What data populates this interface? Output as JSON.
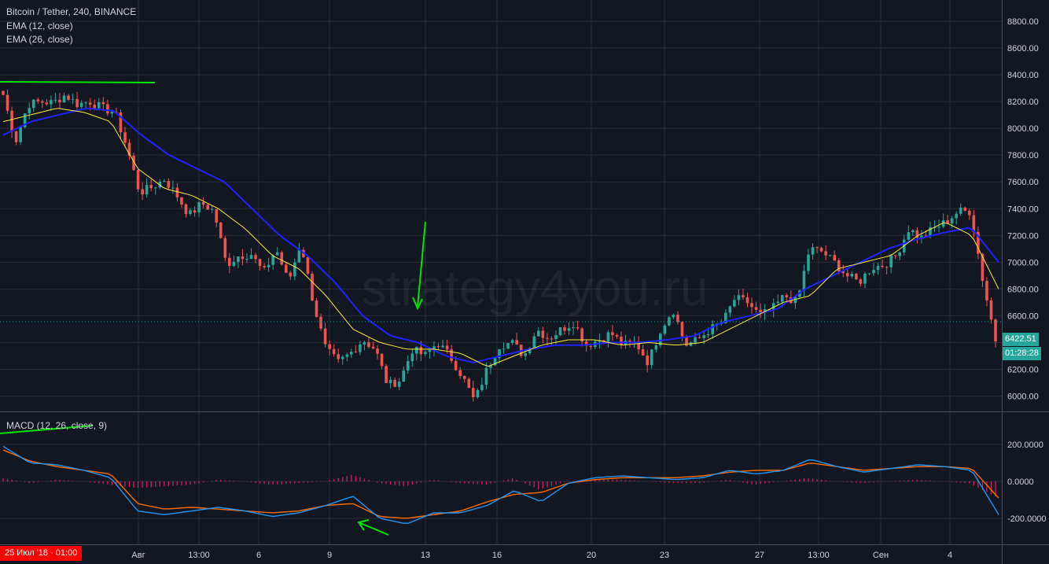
{
  "header": {
    "symbol_title": "Bitcoin / Tether, 240, BINANCE",
    "ema_fast_label": "EMA (12, close)",
    "ema_slow_label": "EMA (26, close)"
  },
  "macd_legend": "MACD (12, 26, close, 9)",
  "watermark": "strategy4you.ru",
  "colors": {
    "background": "#131722",
    "grid": "#2a2e39",
    "candle_up": "#26a69a",
    "candle_down": "#ef5350",
    "ema_fast": "#ffeb3b",
    "ema_slow": "#1e22ff",
    "macd_line": "#2196f3",
    "signal_line": "#ff6d00",
    "histogram": "#e91e63",
    "annotation": "#00e600",
    "price_tag": "#26a69a",
    "date_tag": "#ff0000"
  },
  "price_tag": {
    "price": "6422.51",
    "countdown": "01:28:28"
  },
  "date_tag": "25 Июл '18 · 01:00",
  "chart_data": [
    {
      "type": "candlestick",
      "name": "price",
      "y_ticks": [
        "8800.00",
        "8600.00",
        "8400.00",
        "8200.00",
        "8000.00",
        "7800.00",
        "7600.00",
        "7400.00",
        "7200.00",
        "7000.00",
        "6800.00",
        "6600.00",
        "6400.00",
        "6200.00",
        "6000.00"
      ],
      "ylim": [
        5900,
        8950
      ],
      "x_tick_labels": [
        "Авг",
        "13:00",
        "6",
        "9",
        "13",
        "16",
        "20",
        "23",
        "27",
        "13:00",
        "Сен",
        "4"
      ],
      "last_price": 6422.51,
      "price_level_line": 6555,
      "grid": true,
      "anchor_closes": [
        8250,
        7900,
        8180,
        8200,
        8190,
        8250,
        8180,
        8200,
        8150,
        8120,
        7850,
        7520,
        7560,
        7620,
        7500,
        7350,
        7440,
        7380,
        6980,
        7050,
        7060,
        6920,
        7100,
        6850,
        7150,
        6700,
        6350,
        6250,
        6320,
        6420,
        6350,
        6080,
        6120,
        6350,
        6300,
        6400,
        6300,
        6150,
        5960,
        6200,
        6380,
        6400,
        6300,
        6500,
        6430,
        6500,
        6550,
        6380,
        6420,
        6470,
        6380,
        6400,
        6250,
        6500,
        6650,
        6380,
        6420,
        6500,
        6550,
        6730,
        6700,
        6600,
        6650,
        6750,
        6700,
        7100,
        7080,
        7000,
        6900,
        6850,
        6960,
        6980,
        7050,
        7250,
        7180,
        7250,
        7300,
        7380,
        7380,
        6850,
        6420
      ],
      "ema12_anchors": [
        8050,
        8100,
        8150,
        8120,
        8050,
        7700,
        7550,
        7500,
        7400,
        7250,
        7050,
        6950,
        6750,
        6500,
        6400,
        6350,
        6350,
        6320,
        6220,
        6300,
        6380,
        6420,
        6420,
        6380,
        6400,
        6380,
        6400,
        6500,
        6600,
        6700,
        6750,
        6950,
        7000,
        7050,
        7200,
        7300,
        7200,
        6800
      ],
      "ema26_anchors": [
        7950,
        8050,
        8100,
        8150,
        8130,
        7950,
        7800,
        7700,
        7600,
        7400,
        7200,
        7050,
        6850,
        6600,
        6450,
        6400,
        6300,
        6250,
        6300,
        6350,
        6380,
        6380,
        6400,
        6400,
        6420,
        6450,
        6550,
        6600,
        6650,
        6800,
        6900,
        7000,
        7100,
        7170,
        7220,
        7260,
        7000
      ]
    },
    {
      "type": "macd",
      "name": "MACD (12, 26, close, 9)",
      "y_ticks": [
        "200.0000",
        "0.0000",
        "-200.0000"
      ],
      "ylim": [
        -350,
        230
      ],
      "macd_anchors": [
        190,
        100,
        90,
        60,
        20,
        -160,
        -180,
        -160,
        -140,
        -160,
        -190,
        -170,
        -130,
        -80,
        -200,
        -230,
        -170,
        -170,
        -130,
        -50,
        -110,
        -10,
        20,
        30,
        20,
        10,
        20,
        60,
        40,
        60,
        120,
        80,
        50,
        70,
        90,
        80,
        60,
        -180
      ],
      "signal_anchors": [
        170,
        110,
        80,
        60,
        40,
        -120,
        -150,
        -140,
        -150,
        -160,
        -170,
        -160,
        -130,
        -120,
        -190,
        -200,
        -180,
        -160,
        -110,
        -70,
        -60,
        -10,
        10,
        20,
        20,
        20,
        30,
        50,
        60,
        60,
        100,
        80,
        60,
        70,
        80,
        80,
        70,
        -90
      ]
    }
  ],
  "annotations": [
    {
      "kind": "line",
      "pane": "price",
      "note": "resistance line top-left"
    },
    {
      "kind": "arrow",
      "pane": "price",
      "note": "down arrow at Aug 13"
    },
    {
      "kind": "line",
      "pane": "macd",
      "note": "line near MACD legend"
    },
    {
      "kind": "arrow",
      "pane": "macd",
      "note": "arrow at MACD low"
    }
  ]
}
